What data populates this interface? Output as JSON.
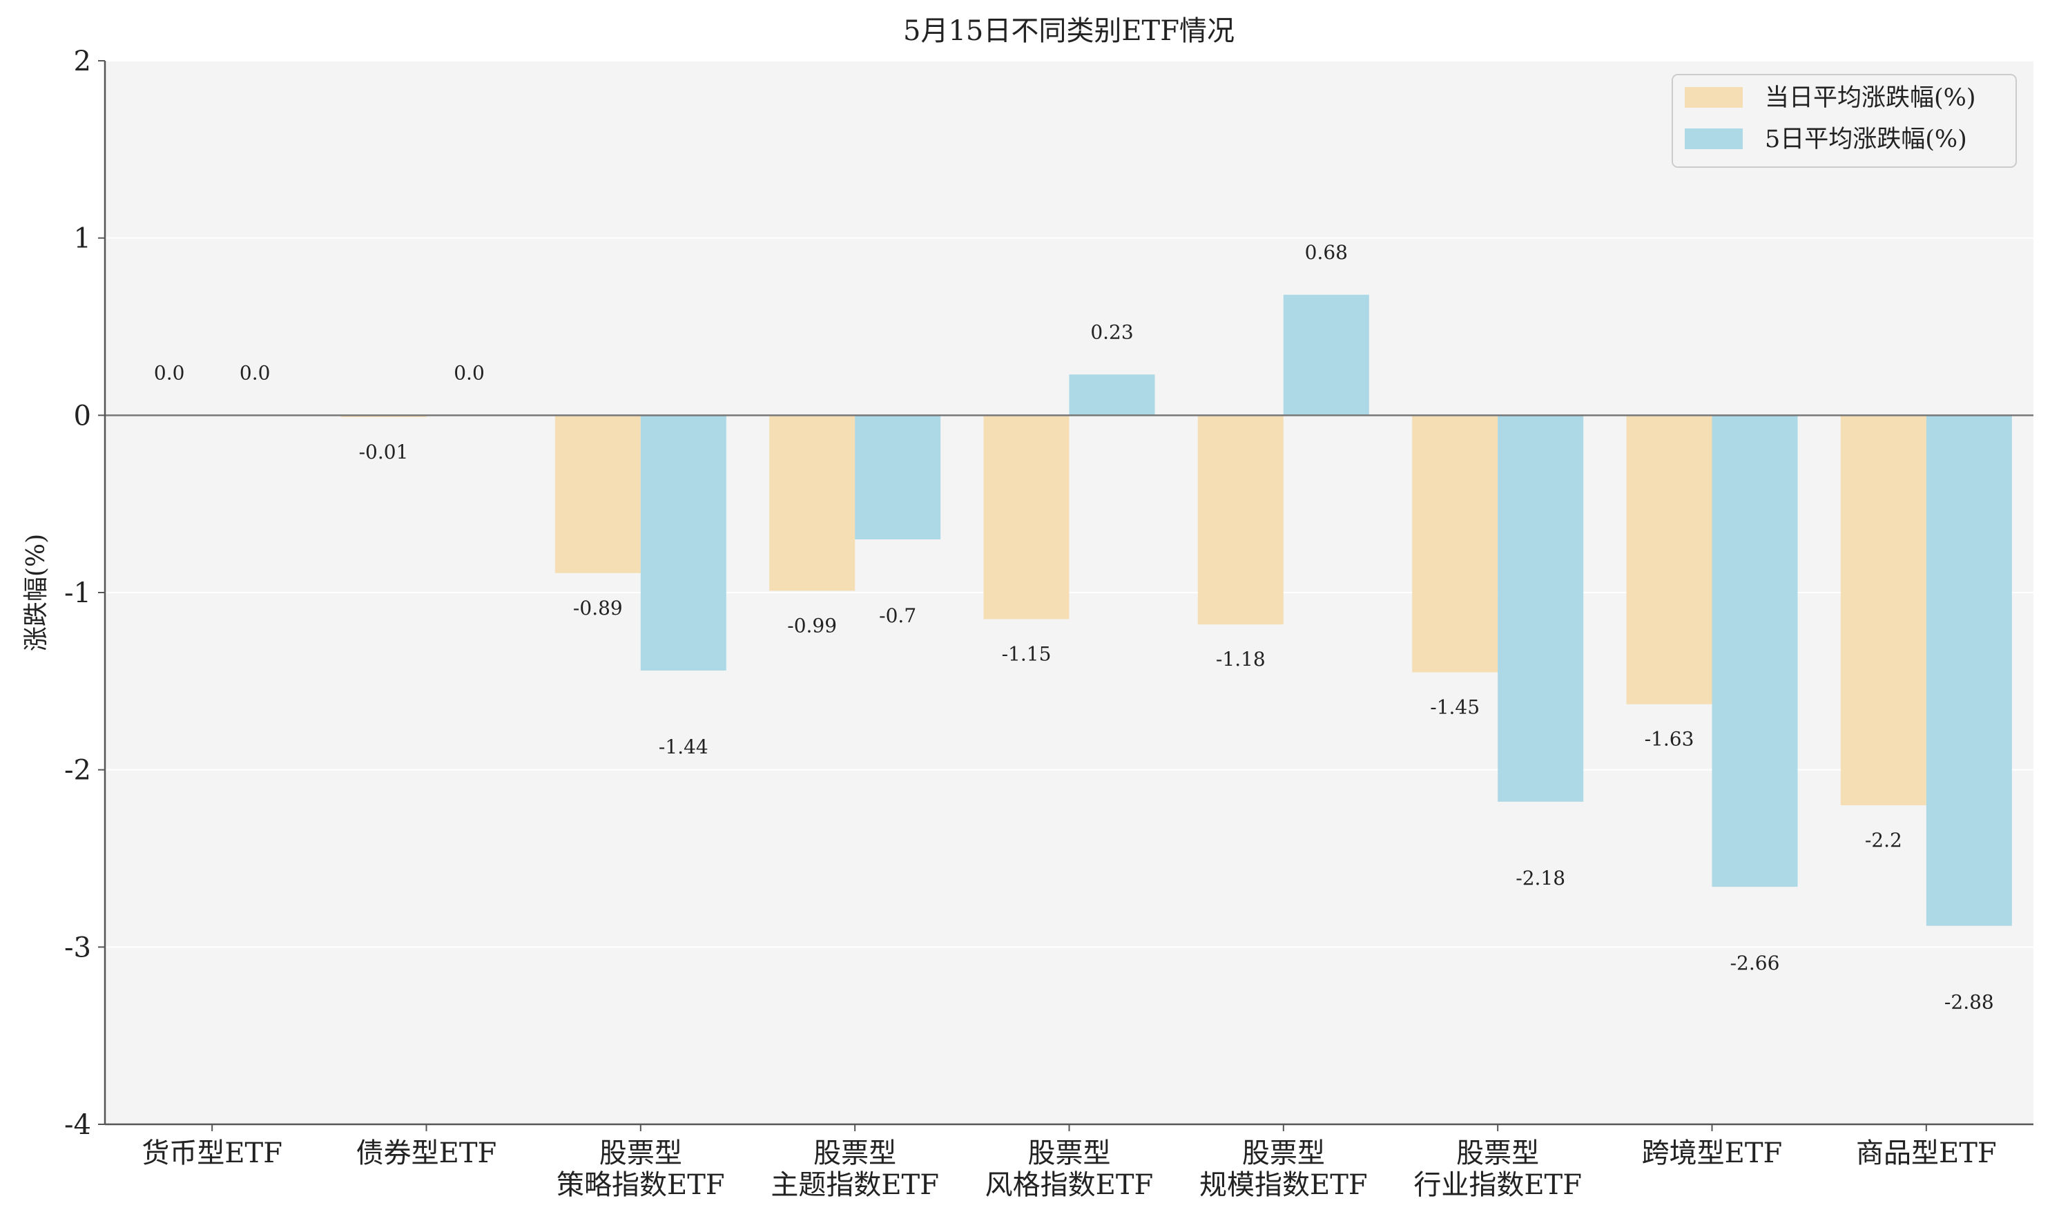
{
  "chart_data": {
    "type": "bar",
    "title": "5月15日不同类别ETF情况",
    "xlabel": "",
    "ylabel": "涨跌幅(%)",
    "ylim": [
      -4,
      2
    ],
    "yticks": [
      2,
      1,
      0,
      -1,
      -2,
      -3,
      -4
    ],
    "grid": true,
    "legend_position": "top-right",
    "categories": [
      [
        "货币型ETF"
      ],
      [
        "债券型ETF"
      ],
      [
        "股票型",
        "策略指数ETF"
      ],
      [
        "股票型",
        "主题指数ETF"
      ],
      [
        "股票型",
        "风格指数ETF"
      ],
      [
        "股票型",
        "规模指数ETF"
      ],
      [
        "股票型",
        "行业指数ETF"
      ],
      [
        "跨境型ETF"
      ],
      [
        "商品型ETF"
      ]
    ],
    "series": [
      {
        "name": "当日平均涨跌幅(%)",
        "color": "#f5deb3",
        "values": [
          0.0,
          -0.01,
          -0.89,
          -0.99,
          -1.15,
          -1.18,
          -1.45,
          -1.63,
          -2.2
        ],
        "labels": [
          "0.0",
          "-0.01",
          "-0.89",
          "-0.99",
          "-1.15",
          "-1.18",
          "-1.45",
          "-1.63",
          "-2.2"
        ]
      },
      {
        "name": "5日平均涨跌幅(%)",
        "color": "#add8e6",
        "values": [
          0.0,
          0.0,
          -1.44,
          -0.7,
          0.23,
          0.68,
          -2.18,
          -2.66,
          -2.88
        ],
        "labels": [
          "0.0",
          "0.0",
          "-1.44",
          "-0.7",
          "0.23",
          "0.68",
          "-2.18",
          "-2.66",
          "-2.88"
        ]
      }
    ],
    "colors": {
      "plot_background": "#f4f4f4",
      "grid": "#ffffff",
      "axis": "#555555",
      "zero_line": "#777777"
    }
  }
}
